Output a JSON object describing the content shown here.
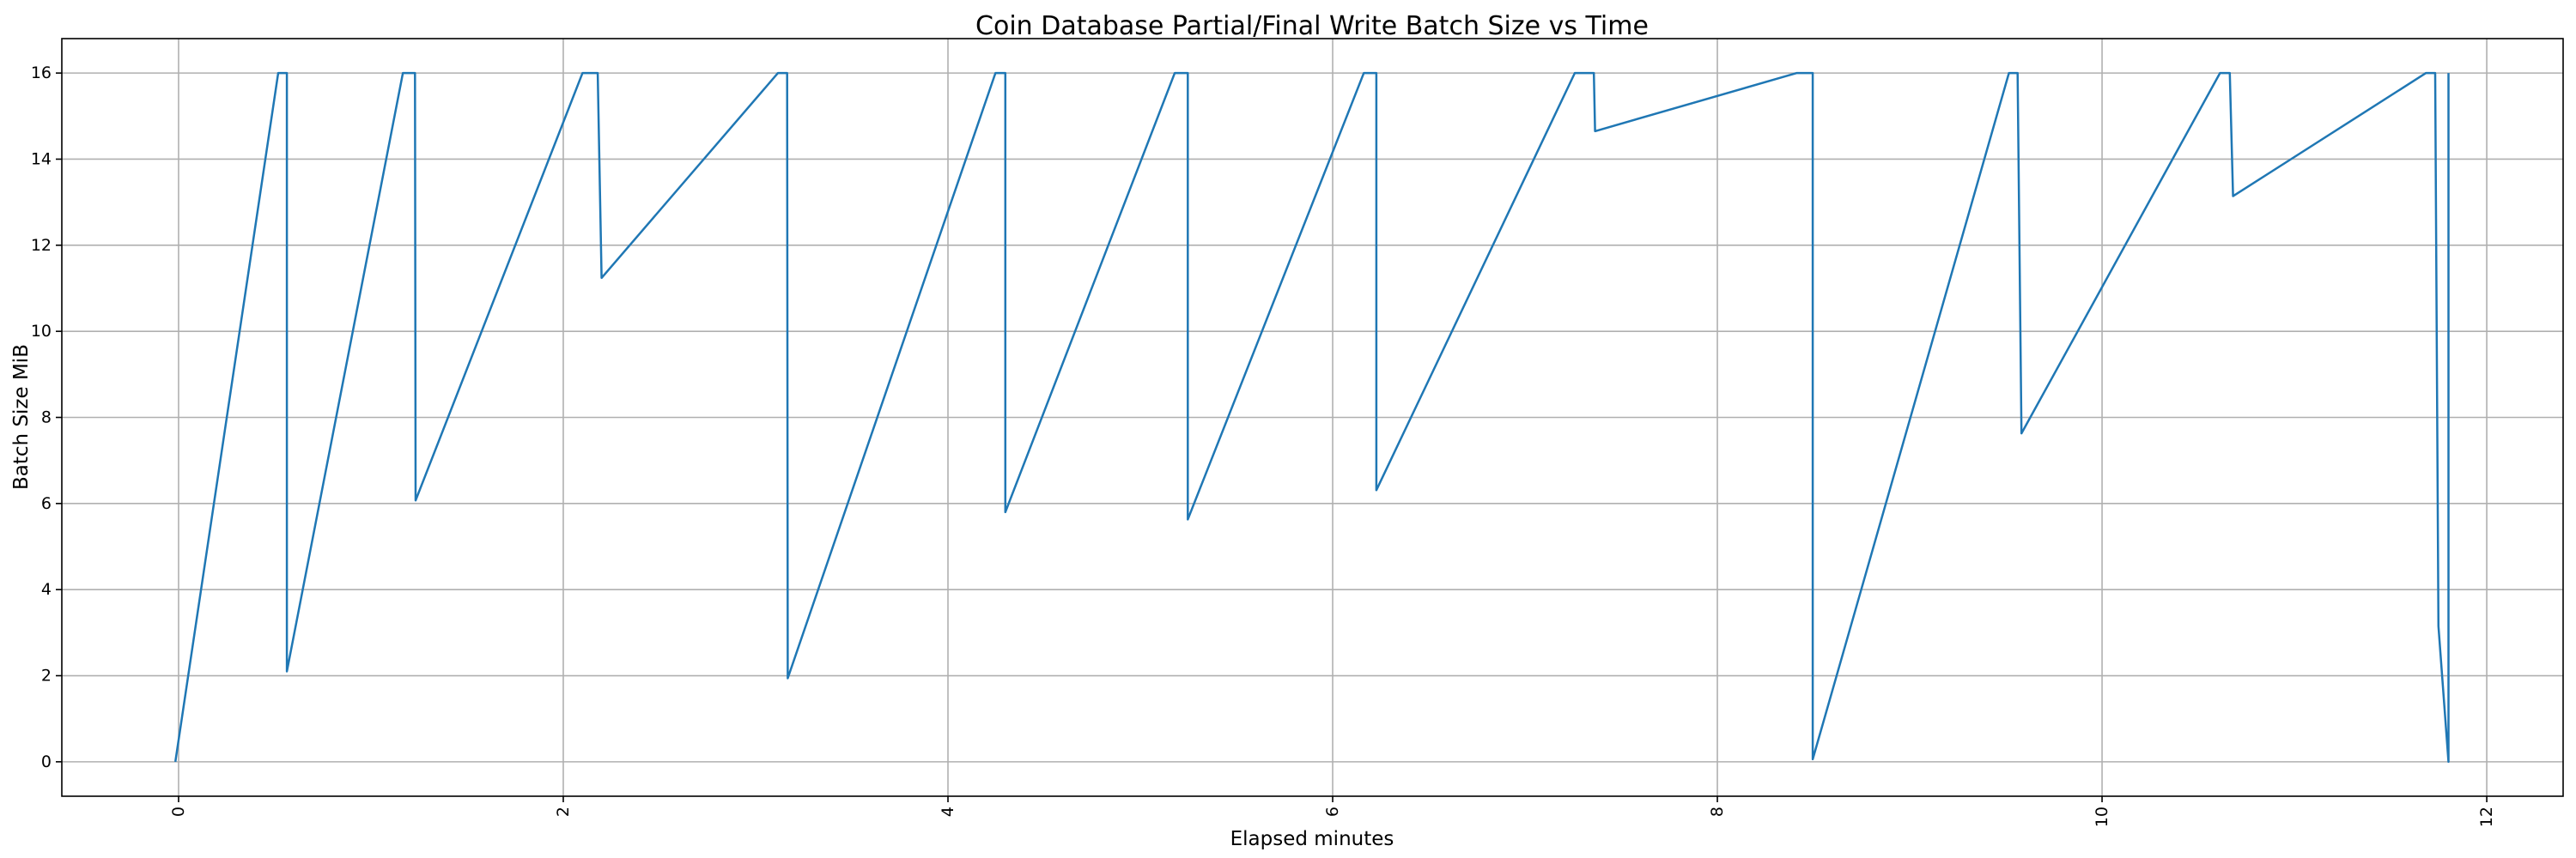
{
  "chart_data": {
    "type": "line",
    "title": "Coin Database Partial/Final Write Batch Size vs Time",
    "xlabel": "Elapsed minutes",
    "ylabel": "Batch Size MiB",
    "xlim": [
      -0.607,
      12.397
    ],
    "ylim": [
      -0.8,
      16.8
    ],
    "xticks": [
      0,
      2,
      4,
      6,
      8,
      10,
      12
    ],
    "yticks": [
      0,
      2,
      4,
      6,
      8,
      10,
      12,
      14,
      16
    ],
    "grid": true,
    "x_tick_rotation": 90,
    "line_color": "#1f77b4",
    "series": [
      {
        "x": [
          -0.017,
          0.518,
          0.563,
          0.563,
          1.166,
          1.229,
          1.232,
          2.1,
          2.179,
          2.199,
          3.116,
          3.164,
          3.167,
          4.247,
          4.298,
          4.298,
          5.179,
          5.247,
          5.247,
          6.162,
          6.227,
          6.227,
          7.259,
          7.358,
          7.364,
          8.413,
          8.496,
          8.496,
          9.516,
          9.561,
          9.581,
          10.613,
          10.664,
          10.681,
          11.684,
          11.732,
          11.749,
          11.801,
          11.801
        ],
        "y": [
          0,
          16,
          16,
          2.1,
          16,
          16,
          6.07,
          16,
          16,
          11.24,
          16,
          16,
          1.94,
          16,
          16,
          5.8,
          16,
          16,
          5.63,
          16,
          16,
          6.31,
          16,
          16,
          14.65,
          16,
          16,
          0.06,
          16,
          16,
          7.63,
          16,
          16,
          13.14,
          16,
          16,
          3.15,
          0,
          16
        ]
      }
    ]
  }
}
